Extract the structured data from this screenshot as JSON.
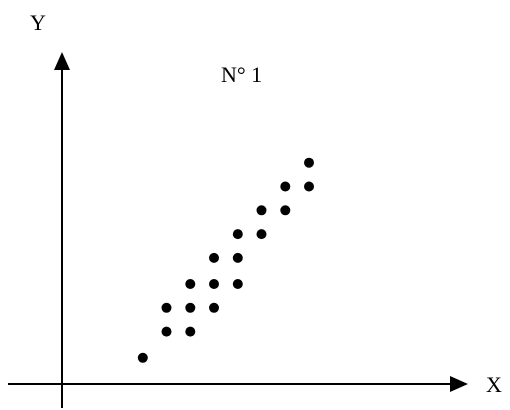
{
  "chart_data": {
    "type": "scatter",
    "title": "N° 1",
    "xlabel": "X",
    "ylabel": "Y",
    "grid": false,
    "legend": "none",
    "ticks": "none",
    "marker_color": "#000000",
    "axis_color": "#000000",
    "xlim": [
      0,
      10
    ],
    "ylim": [
      0,
      10
    ],
    "points": [
      {
        "x": 1.7,
        "y": 1.1
      },
      {
        "x": 2.2,
        "y": 2.2
      },
      {
        "x": 2.2,
        "y": 3.2
      },
      {
        "x": 2.7,
        "y": 2.2
      },
      {
        "x": 2.7,
        "y": 3.2
      },
      {
        "x": 2.7,
        "y": 4.2
      },
      {
        "x": 3.2,
        "y": 3.2
      },
      {
        "x": 3.2,
        "y": 4.2
      },
      {
        "x": 3.2,
        "y": 5.3
      },
      {
        "x": 3.7,
        "y": 4.2
      },
      {
        "x": 3.7,
        "y": 5.3
      },
      {
        "x": 3.7,
        "y": 6.3
      },
      {
        "x": 4.2,
        "y": 6.3
      },
      {
        "x": 4.2,
        "y": 7.3
      },
      {
        "x": 4.7,
        "y": 7.3
      },
      {
        "x": 4.7,
        "y": 8.3
      },
      {
        "x": 5.2,
        "y": 8.3
      },
      {
        "x": 5.2,
        "y": 9.3
      }
    ]
  }
}
